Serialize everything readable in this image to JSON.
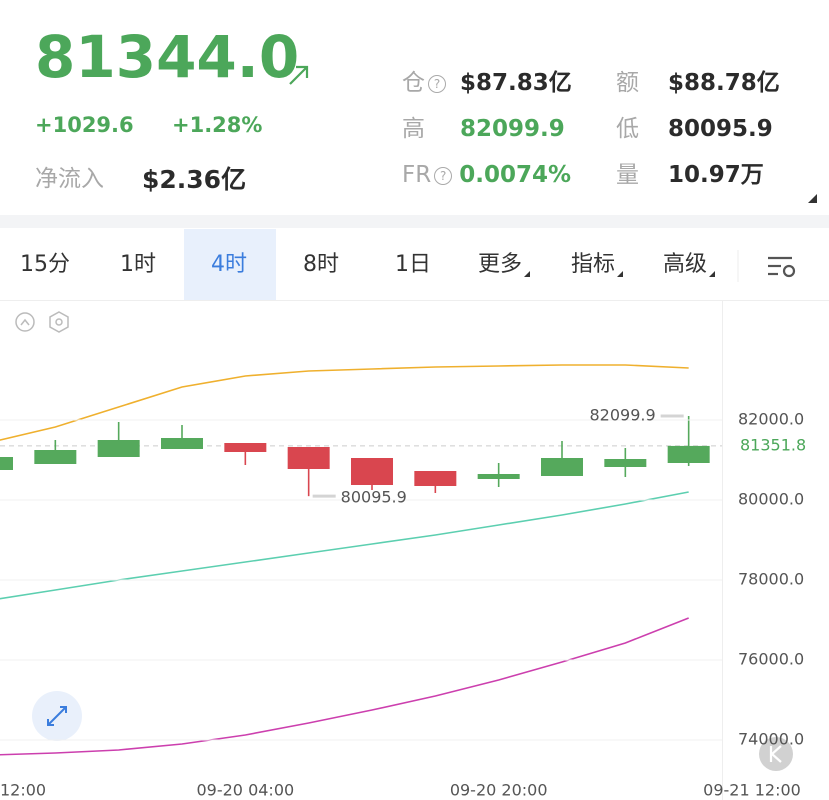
{
  "ticker": {
    "price": "81344.0",
    "change": "+1029.6",
    "change_pct": "+1.28%",
    "net_inflow_label": "净流入",
    "net_inflow": "$2.36亿",
    "stats": [
      {
        "label": "仓",
        "value": "$87.83亿"
      },
      {
        "label": "额",
        "value": "$88.78亿"
      },
      {
        "label": "高",
        "value": "82099.9"
      },
      {
        "label": "低",
        "value": "80095.9"
      },
      {
        "label": "FR",
        "value": "0.0074%"
      },
      {
        "label": "量",
        "value": "10.97万"
      }
    ]
  },
  "tabs": {
    "items": [
      "15分",
      "1时",
      "4时",
      "8时",
      "1日",
      "更多",
      "指标",
      "高级"
    ],
    "selected": 2
  },
  "chart_data": {
    "type": "candlestick",
    "open": [
      80750,
      80900,
      81075,
      81275,
      81425,
      81325,
      81050,
      80725,
      80525,
      80600,
      80825,
      80925
    ],
    "high": [
      81075,
      81500,
      81950,
      81875,
      81425,
      81325,
      81050,
      80725,
      80925,
      81475,
      81300,
      82099.9
    ],
    "low": [
      80750,
      80900,
      81075,
      81275,
      80875,
      80095.9,
      80250,
      80175,
      80325,
      80600,
      80575,
      80850
    ],
    "close": [
      81075,
      81250,
      81500,
      81550,
      81200,
      80775,
      80375,
      80350,
      80650,
      81050,
      81025,
      81351.8
    ],
    "up_color": "#55a95c",
    "down_color": "#d9464f",
    "lines": [
      {
        "color": "#efb02e",
        "values": [
          81450,
          81825,
          82325,
          82825,
          83100,
          83225,
          83275,
          83325,
          83350,
          83375,
          83375,
          83300
        ]
      },
      {
        "color": "#5ccfb0",
        "values": [
          77500,
          77750,
          78000,
          78225,
          78450,
          78675,
          78900,
          79125,
          79375,
          79625,
          79900,
          80200
        ]
      },
      {
        "color": "#cc3fae",
        "values": [
          73625,
          73675,
          73750,
          73900,
          74125,
          74425,
          74750,
          75100,
          75500,
          75950,
          76425,
          77050
        ]
      }
    ],
    "max_marker": 82099.9,
    "min_marker": 80095.9,
    "last_price": 81351.8,
    "ylim": [
      73000,
      85000
    ],
    "yticks": [
      {
        "value": 74000,
        "label": "74000.0"
      },
      {
        "value": 76000,
        "label": "76000.0"
      },
      {
        "value": 78000,
        "label": "78000.0"
      },
      {
        "value": 80000,
        "label": "80000.0"
      },
      {
        "value": 82000,
        "label": "82000.0"
      }
    ],
    "xlim": [
      0,
      12
    ],
    "xticks": [
      {
        "value": 0,
        "label": "12:00"
      },
      {
        "value": 4,
        "label": "09-20 04:00"
      },
      {
        "value": 8,
        "label": "09-20 20:00"
      },
      {
        "value": 12,
        "label": "09-21 12:00"
      }
    ],
    "grid": true
  }
}
